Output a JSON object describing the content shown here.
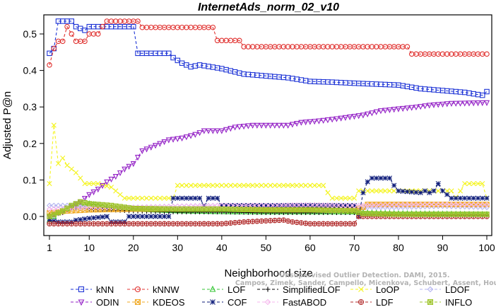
{
  "watermark": {
    "line1": "Unsupervised Outlier Detection. DAMI, 2015.",
    "line2": "Campos, Zimek, Sander, Campello, Micenkova, Schubert, Assent, Houle"
  },
  "chart_data": {
    "type": "line",
    "title": "InternetAds_norm_02_v10",
    "xlabel": "Neighborhood size",
    "ylabel": "Adjusted P@n",
    "xlim": [
      1,
      100
    ],
    "ylim": [
      -0.02,
      0.54
    ],
    "xticks": [
      1,
      10,
      20,
      30,
      40,
      50,
      60,
      70,
      80,
      90,
      100
    ],
    "yticks": [
      0.0,
      0.1,
      0.2,
      0.3,
      0.4,
      0.5
    ],
    "ytick_labels": [
      "0.0",
      "0.1",
      "0.2",
      "0.3",
      "0.4",
      "0.5"
    ],
    "legend_position": "bottom",
    "series": [
      {
        "name": "kNN",
        "color": "#1f35d6",
        "marker": "square",
        "dash": "4,3",
        "points": [
          [
            1,
            0.447
          ],
          [
            2,
            0.46
          ],
          [
            3,
            0.535
          ],
          [
            6,
            0.535
          ],
          [
            7,
            0.52
          ],
          [
            9,
            0.51
          ],
          [
            10,
            0.52
          ],
          [
            20,
            0.52
          ],
          [
            21,
            0.447
          ],
          [
            28,
            0.447
          ],
          [
            29,
            0.435
          ],
          [
            31,
            0.42
          ],
          [
            33,
            0.41
          ],
          [
            35,
            0.415
          ],
          [
            40,
            0.405
          ],
          [
            45,
            0.39
          ],
          [
            50,
            0.385
          ],
          [
            55,
            0.38
          ],
          [
            60,
            0.37
          ],
          [
            65,
            0.368
          ],
          [
            70,
            0.365
          ],
          [
            80,
            0.36
          ],
          [
            85,
            0.35
          ],
          [
            90,
            0.345
          ],
          [
            95,
            0.34
          ],
          [
            99,
            0.332
          ],
          [
            100,
            0.342
          ]
        ]
      },
      {
        "name": "kNNW",
        "color": "#e0312f",
        "marker": "circle",
        "dash": "4,3",
        "points": [
          [
            1,
            0.415
          ],
          [
            2,
            0.46
          ],
          [
            3,
            0.48
          ],
          [
            4,
            0.48
          ],
          [
            5,
            0.52
          ],
          [
            6,
            0.5
          ],
          [
            7,
            0.48
          ],
          [
            9,
            0.48
          ],
          [
            10,
            0.5
          ],
          [
            12,
            0.5
          ],
          [
            13,
            0.52
          ],
          [
            14,
            0.535
          ],
          [
            21,
            0.535
          ],
          [
            22,
            0.518
          ],
          [
            38,
            0.518
          ],
          [
            39,
            0.482
          ],
          [
            44,
            0.482
          ],
          [
            45,
            0.465
          ],
          [
            82,
            0.465
          ],
          [
            83,
            0.445
          ],
          [
            100,
            0.445
          ]
        ]
      },
      {
        "name": "LOF",
        "color": "#35c635",
        "marker": "triangle-up",
        "dash": "4,3",
        "points": [
          [
            1,
            -0.01
          ],
          [
            3,
            0.01
          ],
          [
            5,
            0.02
          ],
          [
            8,
            0.03
          ],
          [
            10,
            0.035
          ],
          [
            15,
            0.025
          ],
          [
            20,
            0.02
          ],
          [
            30,
            0.015
          ],
          [
            40,
            0.013
          ],
          [
            50,
            0.012
          ],
          [
            60,
            0.012
          ],
          [
            70,
            0.012
          ],
          [
            72,
            0.01
          ],
          [
            80,
            0.008
          ],
          [
            90,
            0.007
          ],
          [
            100,
            0.006
          ]
        ]
      },
      {
        "name": "SimplifiedLOF",
        "color": "#000000",
        "marker": "plus",
        "dash": "4,3",
        "points": [
          [
            1,
            0.005
          ],
          [
            4,
            0.01
          ],
          [
            6,
            0.025
          ],
          [
            10,
            0.02
          ],
          [
            20,
            0.015
          ],
          [
            30,
            0.012
          ],
          [
            40,
            0.012
          ],
          [
            50,
            0.01
          ],
          [
            60,
            0.01
          ],
          [
            70,
            0.01
          ],
          [
            72,
            0.005
          ],
          [
            80,
            0.003
          ],
          [
            90,
            0.003
          ],
          [
            100,
            0.003
          ]
        ]
      },
      {
        "name": "LoOP",
        "color": "#f4f41e",
        "marker": "x",
        "dash": "4,3",
        "points": [
          [
            1,
            0.09
          ],
          [
            2,
            0.25
          ],
          [
            3,
            0.145
          ],
          [
            4,
            0.16
          ],
          [
            5,
            0.14
          ],
          [
            7,
            0.12
          ],
          [
            9,
            0.09
          ],
          [
            12,
            0.09
          ],
          [
            15,
            0.08
          ],
          [
            17,
            0.06
          ],
          [
            18,
            0.05
          ],
          [
            25,
            0.05
          ],
          [
            29,
            0.05
          ],
          [
            30,
            0.085
          ],
          [
            63,
            0.085
          ],
          [
            64,
            0.065
          ],
          [
            65,
            0.05
          ],
          [
            70,
            0.05
          ],
          [
            71,
            0.07
          ],
          [
            92,
            0.07
          ],
          [
            93,
            0.05
          ],
          [
            95,
            0.09
          ],
          [
            99,
            0.09
          ],
          [
            100,
            0.05
          ]
        ]
      },
      {
        "name": "LDOF",
        "color": "#b4b4f0",
        "marker": "diamond",
        "dash": "4,3",
        "points": [
          [
            1,
            0.03
          ],
          [
            5,
            0.03
          ],
          [
            10,
            0.025
          ],
          [
            20,
            0.025
          ],
          [
            30,
            0.028
          ],
          [
            40,
            0.03
          ],
          [
            50,
            0.03
          ],
          [
            60,
            0.028
          ],
          [
            70,
            0.025
          ],
          [
            80,
            0.025
          ],
          [
            90,
            0.028
          ],
          [
            100,
            0.025
          ]
        ]
      },
      {
        "name": "ODIN",
        "color": "#9422c6",
        "marker": "triangle-down",
        "dash": "4,3",
        "points": [
          [
            1,
            0.0
          ],
          [
            5,
            0.02
          ],
          [
            8,
            0.04
          ],
          [
            10,
            0.06
          ],
          [
            12,
            0.075
          ],
          [
            14,
            0.095
          ],
          [
            16,
            0.11
          ],
          [
            18,
            0.13
          ],
          [
            20,
            0.145
          ],
          [
            22,
            0.18
          ],
          [
            25,
            0.195
          ],
          [
            28,
            0.21
          ],
          [
            31,
            0.215
          ],
          [
            34,
            0.225
          ],
          [
            36,
            0.235
          ],
          [
            40,
            0.235
          ],
          [
            43,
            0.245
          ],
          [
            47,
            0.25
          ],
          [
            55,
            0.25
          ],
          [
            58,
            0.258
          ],
          [
            62,
            0.262
          ],
          [
            66,
            0.268
          ],
          [
            72,
            0.278
          ],
          [
            76,
            0.29
          ],
          [
            80,
            0.295
          ],
          [
            84,
            0.3
          ],
          [
            87,
            0.305
          ],
          [
            92,
            0.31
          ],
          [
            100,
            0.312
          ]
        ]
      },
      {
        "name": "KDEOS",
        "color": "#f0a822",
        "marker": "box-x",
        "dash": "4,3",
        "points": [
          [
            1,
            0.01
          ],
          [
            5,
            0.015
          ],
          [
            10,
            0.018
          ],
          [
            20,
            0.02
          ],
          [
            30,
            0.02
          ],
          [
            40,
            0.02
          ],
          [
            50,
            0.02
          ],
          [
            60,
            0.02
          ],
          [
            70,
            0.02
          ],
          [
            72,
            0.025
          ],
          [
            73,
            0.033
          ],
          [
            100,
            0.033
          ]
        ]
      },
      {
        "name": "COF",
        "color": "#0e1c7a",
        "marker": "asterisk",
        "dash": "4,3",
        "points": [
          [
            1,
            -0.01
          ],
          [
            3,
            -0.015
          ],
          [
            6,
            -0.015
          ],
          [
            7,
            -0.01
          ],
          [
            10,
            -0.005
          ],
          [
            14,
            0.0
          ],
          [
            15,
            -0.015
          ],
          [
            18,
            -0.015
          ],
          [
            19,
            0.0
          ],
          [
            28,
            0.0
          ],
          [
            29,
            0.05
          ],
          [
            35,
            0.05
          ],
          [
            36,
            0.03
          ],
          [
            37,
            0.05
          ],
          [
            39,
            0.05
          ],
          [
            40,
            0.03
          ],
          [
            55,
            0.03
          ],
          [
            70,
            0.03
          ],
          [
            71,
            0.0
          ],
          [
            72,
            0.065
          ],
          [
            73,
            0.095
          ],
          [
            74,
            0.105
          ],
          [
            78,
            0.105
          ],
          [
            79,
            0.085
          ],
          [
            80,
            0.07
          ],
          [
            85,
            0.065
          ],
          [
            86,
            0.07
          ],
          [
            87,
            0.065
          ],
          [
            88,
            0.07
          ],
          [
            89,
            0.09
          ],
          [
            90,
            0.07
          ],
          [
            92,
            0.05
          ],
          [
            100,
            0.05
          ]
        ]
      },
      {
        "name": "FastABOD",
        "color": "#f4b6ec",
        "marker": "diamond",
        "dash": "4,3",
        "points": [
          [
            1,
            0.02
          ],
          [
            10,
            0.025
          ],
          [
            20,
            0.025
          ],
          [
            30,
            0.028
          ],
          [
            40,
            0.03
          ],
          [
            50,
            0.03
          ],
          [
            60,
            0.032
          ],
          [
            70,
            0.03
          ],
          [
            80,
            0.032
          ],
          [
            90,
            0.033
          ],
          [
            100,
            0.032
          ]
        ]
      },
      {
        "name": "LDF",
        "color": "#b22d2d",
        "marker": "circle-plus",
        "dash": "4,3",
        "points": [
          [
            1,
            -0.02
          ],
          [
            10,
            -0.02
          ],
          [
            20,
            -0.02
          ],
          [
            30,
            -0.02
          ],
          [
            40,
            -0.02
          ],
          [
            45,
            -0.015
          ],
          [
            50,
            -0.012
          ],
          [
            54,
            -0.01
          ],
          [
            56,
            -0.015
          ],
          [
            60,
            -0.02
          ],
          [
            70,
            -0.02
          ],
          [
            71,
            0.0
          ],
          [
            80,
            0.0
          ],
          [
            100,
            0.0
          ]
        ]
      },
      {
        "name": "INFLO",
        "color": "#9ec42b",
        "marker": "box-star",
        "dash": "4,3",
        "points": [
          [
            1,
            0.0
          ],
          [
            4,
            0.015
          ],
          [
            6,
            0.03
          ],
          [
            8,
            0.04
          ],
          [
            10,
            0.035
          ],
          [
            15,
            0.03
          ],
          [
            20,
            0.022
          ],
          [
            30,
            0.02
          ],
          [
            40,
            0.02
          ],
          [
            50,
            0.018
          ],
          [
            60,
            0.018
          ],
          [
            70,
            0.015
          ],
          [
            72,
            0.008
          ],
          [
            80,
            0.006
          ],
          [
            90,
            0.006
          ],
          [
            100,
            0.006
          ]
        ]
      }
    ]
  }
}
